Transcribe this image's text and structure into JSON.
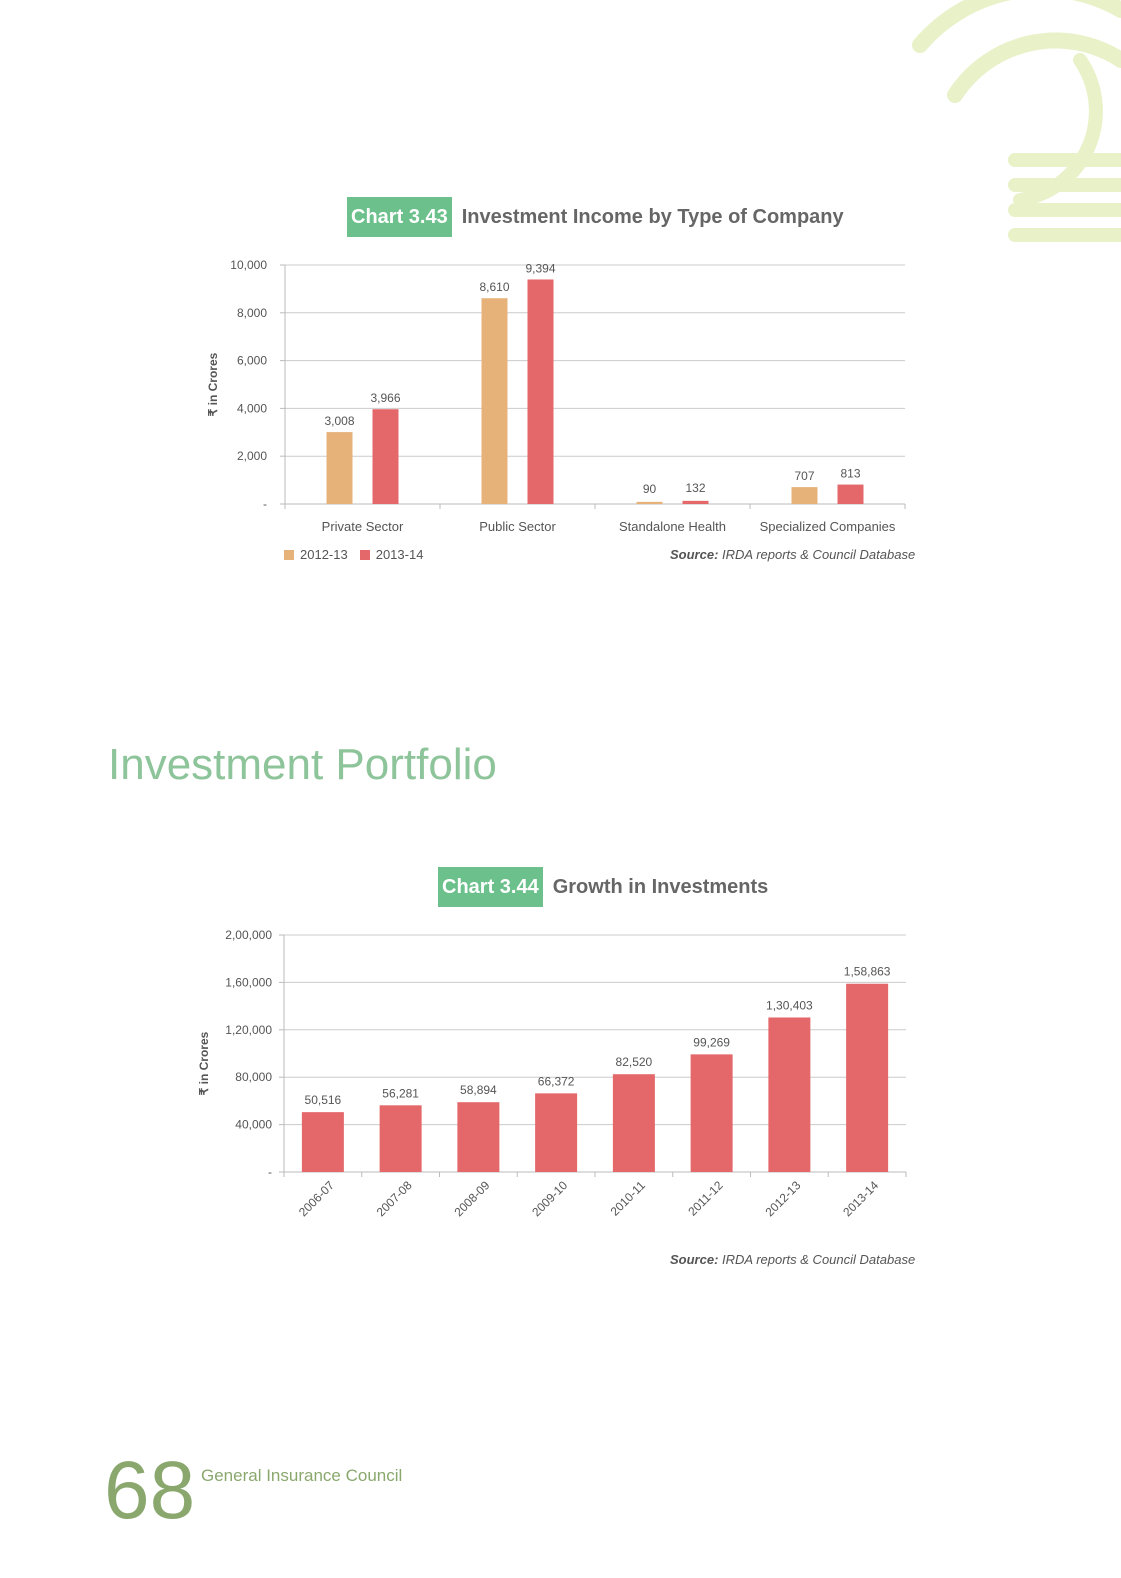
{
  "colors": {
    "series_a": "#e6b27a",
    "series_b": "#e4676a",
    "tag_bg": "#6cc08b",
    "heading": "#8dc49a",
    "footer": "#8aa86e",
    "grid": "#cccccc"
  },
  "chart1": {
    "tag": "Chart 3.43",
    "name": "Investment Income by Type of Company",
    "source_label": "Source:",
    "source_text": " IRDA reports & Council Database"
  },
  "chart2": {
    "tag": "Chart 3.44",
    "name": "Growth in Investments",
    "source_label": "Source:",
    "source_text": " IRDA reports & Council Database"
  },
  "section_heading": "Investment Portfolio",
  "footer": {
    "page_number": "68",
    "publisher": "General Insurance Council"
  },
  "chart_data": [
    {
      "type": "bar",
      "title": "Investment Income by Type of Company",
      "ylabel": "₹ in Crores",
      "ylim": [
        0,
        10000
      ],
      "yticks": [
        0,
        2000,
        4000,
        6000,
        8000,
        10000
      ],
      "ytick_labels": [
        "-",
        "2,000",
        "4,000",
        "6,000",
        "8,000",
        "10,000"
      ],
      "categories": [
        "Private Sector",
        "Public Sector",
        "Standalone Health",
        "Specialized Companies"
      ],
      "series": [
        {
          "name": "2012-13",
          "values": [
            3008,
            8610,
            90,
            707
          ],
          "labels": [
            "3,008",
            "8,610",
            "90",
            "707"
          ]
        },
        {
          "name": "2013-14",
          "values": [
            3966,
            9394,
            132,
            813
          ],
          "labels": [
            "3,966",
            "9,394",
            "132",
            "813"
          ]
        }
      ],
      "grid": true,
      "legend": "bottom-left"
    },
    {
      "type": "bar",
      "title": "Growth in Investments",
      "ylabel": "₹ in Crores",
      "ylim": [
        0,
        200000
      ],
      "yticks": [
        0,
        40000,
        80000,
        120000,
        160000,
        200000
      ],
      "ytick_labels": [
        "-",
        "40,000",
        "80,000",
        "1,20,000",
        "1,60,000",
        "2,00,000"
      ],
      "categories": [
        "2006-07",
        "2007-08",
        "2008-09",
        "2009-10",
        "2010-11",
        "2011-12",
        "2012-13",
        "2013-14"
      ],
      "values": [
        50516,
        56281,
        58894,
        66372,
        82520,
        99269,
        130403,
        158863
      ],
      "value_labels": [
        "50,516",
        "56,281",
        "58,894",
        "66,372",
        "82,520",
        "99,269",
        "1,30,403",
        "1,58,863"
      ],
      "grid": true
    }
  ]
}
